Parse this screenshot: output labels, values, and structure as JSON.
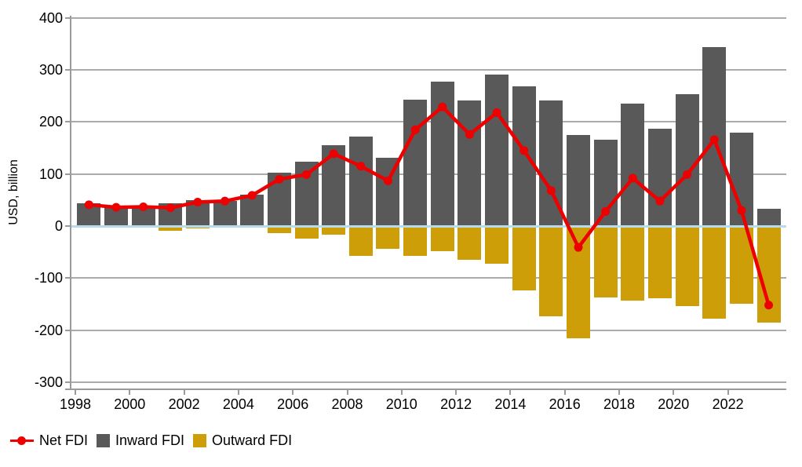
{
  "chart_data": {
    "type": "combo-bar-line",
    "title": "",
    "ylabel": "USD, billion",
    "categories": [
      1998,
      1999,
      2000,
      2001,
      2002,
      2003,
      2004,
      2005,
      2006,
      2007,
      2008,
      2009,
      2010,
      2011,
      2012,
      2013,
      2014,
      2015,
      2016,
      2017,
      2018,
      2019,
      2020,
      2021,
      2022,
      2023
    ],
    "series": [
      {
        "name": "Net FDI",
        "type": "line",
        "color": "#ED0000",
        "values": [
          41,
          36,
          37,
          35,
          46,
          48,
          59,
          90,
          99,
          139,
          115,
          87,
          185,
          229,
          176,
          218,
          145,
          68,
          -41,
          28,
          92,
          48,
          99,
          166,
          30,
          -152
        ]
      },
      {
        "name": "Inward FDI",
        "type": "bar",
        "color": "#595959",
        "values": [
          44,
          38,
          38,
          44,
          50,
          49,
          61,
          103,
          123,
          156,
          172,
          131,
          243,
          277,
          241,
          291,
          268,
          242,
          175,
          166,
          235,
          187,
          253,
          344,
          180,
          33
        ]
      },
      {
        "name": "Outward FDI",
        "type": "bar",
        "color": "#CD9E07",
        "values": [
          -3,
          -2,
          -1,
          -9,
          -4,
          -1,
          -2,
          -13,
          -24,
          -17,
          -57,
          -44,
          -58,
          -48,
          -65,
          -73,
          -123,
          -174,
          -216,
          -138,
          -143,
          -139,
          -154,
          -178,
          -150,
          -185
        ]
      }
    ],
    "y_ticks": [
      "400",
      "300",
      "200",
      "100",
      "0",
      "-100",
      "-200",
      "-300"
    ],
    "y_tick_values": [
      400,
      300,
      200,
      100,
      0,
      -100,
      -200,
      -300
    ],
    "x_tick_labels": [
      "1998",
      "2000",
      "2002",
      "2004",
      "2006",
      "2008",
      "2010",
      "2012",
      "2014",
      "2016",
      "2018",
      "2020",
      "2022"
    ],
    "x_tick_year_indices": [
      0,
      2,
      4,
      6,
      8,
      10,
      12,
      14,
      16,
      18,
      20,
      22,
      24
    ],
    "ylim": [
      -320,
      405
    ],
    "grid": "horizontal",
    "zero_line_color": "#B8DBE9",
    "gridline_color": "#ababab",
    "legend_position": "bottom-left"
  }
}
